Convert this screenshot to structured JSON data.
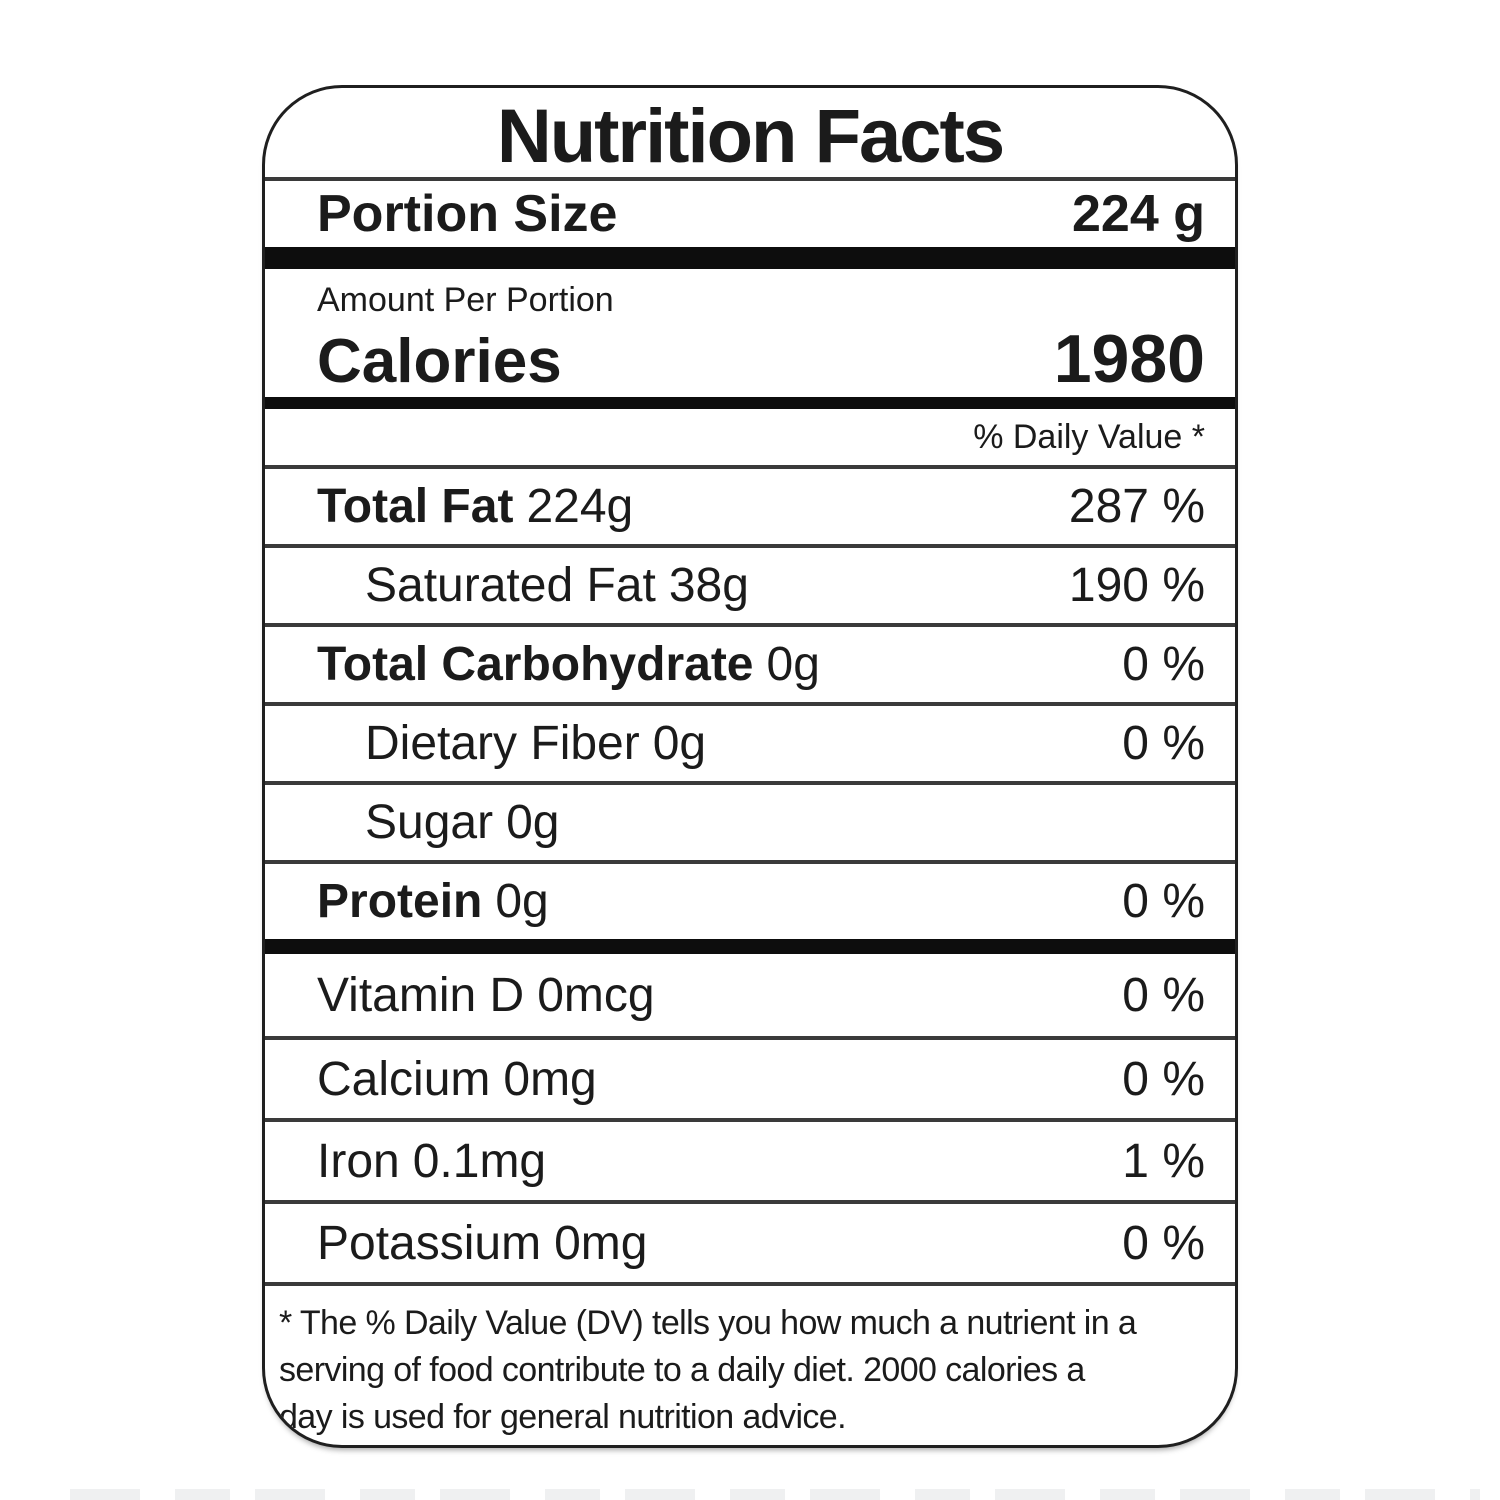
{
  "label": {
    "title": "Nutrition Facts",
    "portion": {
      "label": "Portion Size",
      "value": "224 g"
    },
    "calories": {
      "header": "Amount Per Portion",
      "label": "Calories",
      "value": "1980"
    },
    "daily_value_header": "% Daily Value *",
    "nutrients": [
      {
        "name": "Total Fat",
        "amount": "224g",
        "value": "287 %"
      },
      {
        "name": "Saturated Fat",
        "amount": "38g",
        "value": "190 %"
      },
      {
        "name": "Total Carbohydrate",
        "amount": "0g",
        "value": "0 %"
      },
      {
        "name": "Dietary Fiber",
        "amount": "0g",
        "value": "0 %"
      },
      {
        "name": "Sugar",
        "amount": "0g",
        "value": ""
      },
      {
        "name": "Protein",
        "amount": "0g",
        "value": "0 %"
      }
    ],
    "micronutrients": [
      {
        "name": "Vitamin D",
        "amount": "0mcg",
        "value": "0 %"
      },
      {
        "name": "Calcium",
        "amount": "0mg",
        "value": "0 %"
      },
      {
        "name": "Iron",
        "amount": "0.1mg",
        "value": "1 %"
      },
      {
        "name": "Potassium",
        "amount": "0mg",
        "value": "0 %"
      }
    ],
    "footnote_lines": [
      "* The % Daily Value (DV) tells you how much a nutrient in a",
      "serving of food contribute to a daily diet. 2000 calories a",
      "day is used for general nutrition advice."
    ]
  },
  "colors": {
    "text": "#1b1b1b",
    "divider": "#3a3a3a",
    "thick_bar": "#0d0d0d",
    "background": "#ffffff",
    "border": "#1f1f1f"
  }
}
